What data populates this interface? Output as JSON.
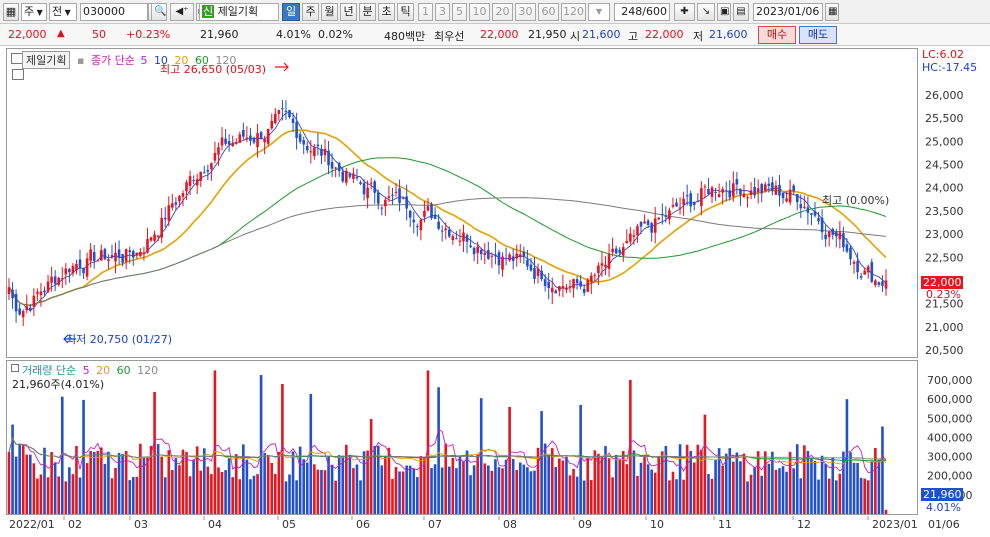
{
  "toolbar": {
    "type_label": "주",
    "market_label": "전",
    "code": "030000",
    "buy_tag": "신",
    "stock_name": "제일기획",
    "periods": [
      "일",
      "주",
      "월",
      "년",
      "분",
      "초",
      "틱"
    ],
    "numbers": [
      "1",
      "3",
      "5",
      "10",
      "20",
      "30",
      "60",
      "120"
    ],
    "count": "248/600",
    "date": "2023/01/06"
  },
  "quote": {
    "price": "22,000",
    "change": "50",
    "change_pct": "+0.23%",
    "prev": "21,960",
    "ratio": "4.01%",
    "ratio2": "0.02%",
    "amount": "480백만",
    "best_label": "최우선",
    "best_ask": "22,000",
    "best_bid": "21,950",
    "open_label": "시",
    "open": "21,600",
    "high_label": "고",
    "high": "22,000",
    "low_label": "저",
    "low": "21,600",
    "buy_label": "매수",
    "sell_label": "매도"
  },
  "colors": {
    "up": "#e8141e",
    "down": "#2050d0",
    "ma5": "#2030c8",
    "ma10": "#1a3fd0",
    "ma20": "#e8a000",
    "ma60": "#1a9a2a",
    "ma120": "#7a7a7a",
    "vol_ma5": "#c020c0"
  },
  "price_panel": {
    "stock_label": "제일기획",
    "legend_title": "종가 단순",
    "legend_periods": [
      "5",
      "10",
      "20",
      "60",
      "120"
    ],
    "max_annotation": "최고 26,650 (05/03)",
    "min_annotation": "최저 20,750 (01/27)",
    "mid_annotation": "최고 (0.00%)",
    "lc": "LC:6.02",
    "hc": "HC:-17.45",
    "current_price": "22,000",
    "current_pct": "0.23%",
    "y_ticks": [
      "26,000",
      "25,500",
      "25,000",
      "24,500",
      "24,000",
      "23,500",
      "23,000",
      "22,500",
      "22,000",
      "21,500",
      "21,000",
      "20,500"
    ]
  },
  "volume_panel": {
    "legend_title": "거래량 단순",
    "legend_periods": [
      "5",
      "20",
      "60",
      "120"
    ],
    "current_label": "21,960주(4.01%)",
    "current_volume": "21,960",
    "current_pct": "4.01%",
    "y_ticks": [
      "700,000",
      "600,000",
      "500,000",
      "400,000",
      "300,000",
      "200,000",
      "100,000"
    ]
  },
  "x_axis": {
    "labels": [
      "2022/01",
      "02",
      "03",
      "04",
      "05",
      "06",
      "07",
      "08",
      "09",
      "10",
      "11",
      "12",
      "2023/01",
      "01/06"
    ]
  },
  "chart_data": {
    "type": "candlestick",
    "title": "제일기획",
    "x_range": [
      "2022/01",
      "2023/01/06"
    ],
    "price_range": [
      20500,
      26800
    ],
    "price_monthly_closes": {
      "x": [
        "2022/01",
        "02",
        "03",
        "04",
        "05",
        "06",
        "07",
        "08",
        "09",
        "10",
        "11",
        "12",
        "2023/01"
      ],
      "values": [
        21200,
        22400,
        22600,
        24800,
        25400,
        24000,
        23400,
        22500,
        21800,
        23200,
        24100,
        23800,
        22000
      ]
    },
    "max": {
      "value": 26650,
      "date": "05/03"
    },
    "min": {
      "value": 20750,
      "date": "01/27"
    },
    "volume_range": [
      0,
      800000
    ],
    "volume_peaks": [
      750000,
      750000,
      700000,
      600000
    ]
  }
}
